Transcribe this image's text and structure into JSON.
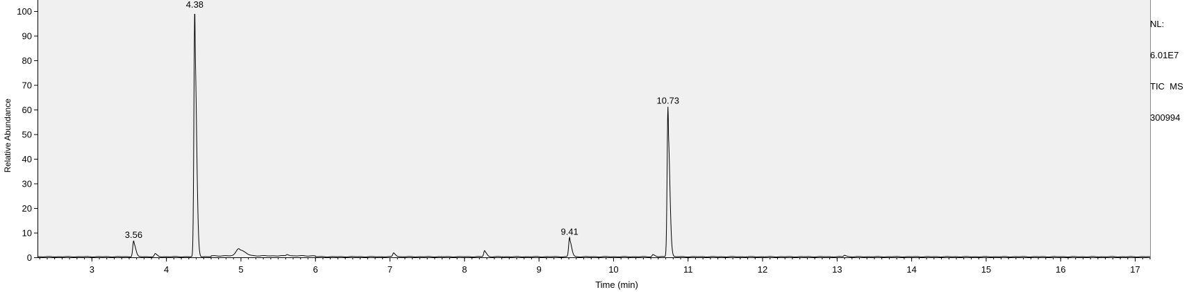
{
  "chart_data": {
    "type": "line",
    "xlabel": "Time (min)",
    "ylabel": "Relative Abundance",
    "xlim": [
      2.27,
      17.2
    ],
    "ylim": [
      0,
      100
    ],
    "x_ticks": [
      "3",
      "4",
      "5",
      "6",
      "7",
      "8",
      "9",
      "10",
      "11",
      "12",
      "13",
      "14",
      "15",
      "16",
      "17"
    ],
    "y_ticks": [
      "0",
      "10",
      "20",
      "30",
      "40",
      "50",
      "60",
      "70",
      "80",
      "90",
      "100"
    ],
    "peaks": [
      {
        "rt": 3.56,
        "height": 6.5,
        "label": "3.56"
      },
      {
        "rt": 3.85,
        "height": 1.2,
        "label": ""
      },
      {
        "rt": 4.38,
        "height": 100,
        "label": "4.38"
      },
      {
        "rt": 4.97,
        "height": 3.0,
        "label": ""
      },
      {
        "rt": 5.62,
        "height": 0.6,
        "label": ""
      },
      {
        "rt": 7.05,
        "height": 1.6,
        "label": ""
      },
      {
        "rt": 8.27,
        "height": 2.5,
        "label": ""
      },
      {
        "rt": 9.41,
        "height": 7.8,
        "label": "9.41"
      },
      {
        "rt": 10.53,
        "height": 0.9,
        "label": ""
      },
      {
        "rt": 10.73,
        "height": 61,
        "label": "10.73"
      },
      {
        "rt": 13.1,
        "height": 0.6,
        "label": ""
      }
    ],
    "grid": false,
    "background": "#f0f0f0",
    "line_color": "#000000"
  },
  "side_info": {
    "nl_label": "NL:",
    "nl_value": "6.01E7",
    "scan_filter": "TIC  MS",
    "sample": "300994"
  }
}
